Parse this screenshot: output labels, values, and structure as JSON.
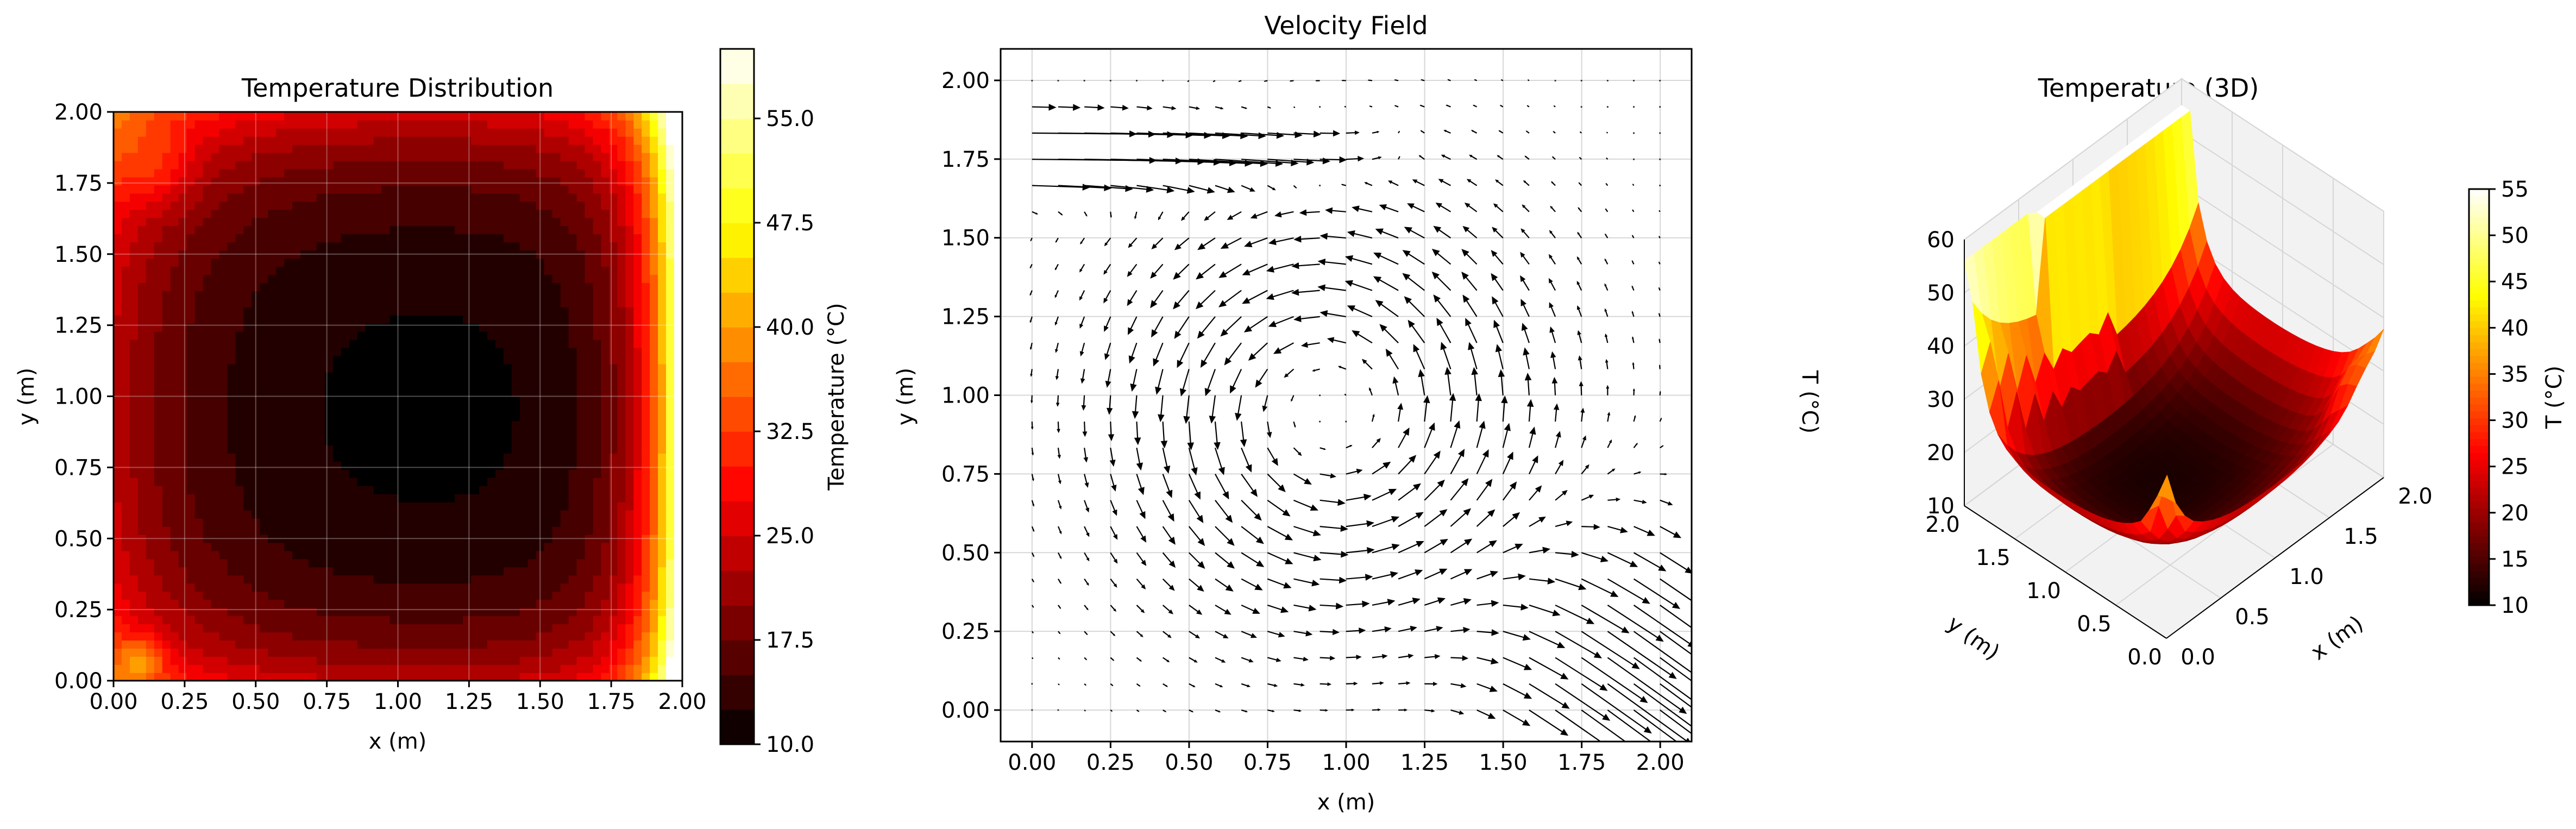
{
  "chart_data": [
    {
      "type": "contour",
      "title": "Temperature Distribution",
      "xlabel": "x (m)",
      "ylabel": "y (m)",
      "xlim": [
        0,
        2
      ],
      "ylim": [
        0,
        2
      ],
      "xticks": [
        "0.00",
        "0.25",
        "0.50",
        "0.75",
        "1.00",
        "1.25",
        "1.50",
        "1.75",
        "2.00"
      ],
      "yticks": [
        "0.00",
        "0.25",
        "0.50",
        "0.75",
        "1.00",
        "1.25",
        "1.50",
        "1.75",
        "2.00"
      ],
      "grid": true,
      "colormap": "hot",
      "colorbar": {
        "label": "Temperature (°C)",
        "range": [
          10,
          60
        ],
        "ticks": [
          "10.0",
          "17.5",
          "25.0",
          "32.5",
          "40.0",
          "47.5",
          "55.0"
        ]
      }
    },
    {
      "type": "quiver",
      "title": "Velocity Field",
      "xlabel": "x (m)",
      "ylabel": "y (m)",
      "xlim": [
        -0.1,
        2.1
      ],
      "ylim": [
        -0.1,
        2.1
      ],
      "xticks": [
        "0.00",
        "0.25",
        "0.50",
        "0.75",
        "1.00",
        "1.25",
        "1.50",
        "1.75",
        "2.00"
      ],
      "yticks": [
        "0.00",
        "0.25",
        "0.50",
        "0.75",
        "1.00",
        "1.25",
        "1.50",
        "1.75",
        "2.00"
      ],
      "grid": true,
      "grid_spacing": 0.0833,
      "features": {
        "inflow_jet_y_range": [
          1.6,
          1.95
        ],
        "vortex_center": [
          0.95,
          0.95
        ],
        "outflow_corner": "bottom-right"
      }
    },
    {
      "type": "surface3d",
      "title": "Temperature (3D)",
      "xlabel": "x (m)",
      "ylabel": "y (m)",
      "zlabel": "T (°C)",
      "xticks": [
        "0.0",
        "0.5",
        "1.0",
        "1.5",
        "2.0"
      ],
      "yticks": [
        "0.0",
        "0.5",
        "1.0",
        "1.5",
        "2.0"
      ],
      "zticks": [
        "10",
        "20",
        "30",
        "40",
        "50",
        "60"
      ],
      "zlim": [
        10,
        60
      ],
      "colormap": "hot",
      "colorbar": {
        "label": "T (°C)",
        "range": [
          10,
          55
        ],
        "ticks": [
          "10",
          "15",
          "20",
          "25",
          "30",
          "35",
          "40",
          "45",
          "50",
          "55"
        ]
      }
    }
  ]
}
